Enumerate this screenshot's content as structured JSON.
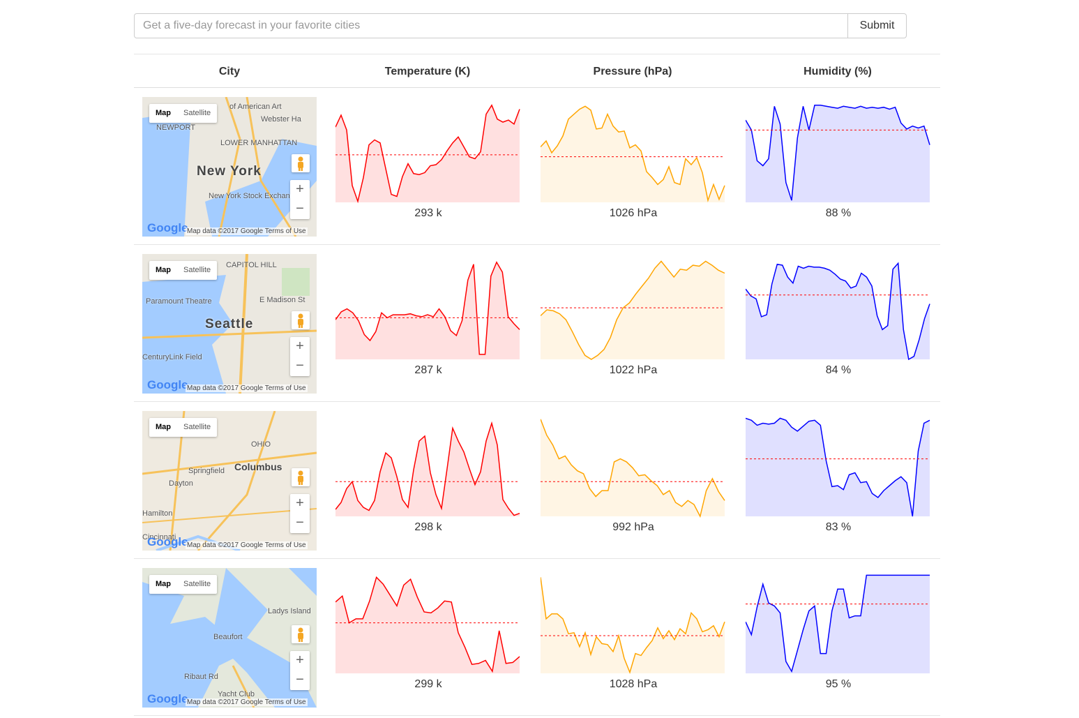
{
  "search": {
    "placeholder": "Get a five-day forecast in your favorite cities",
    "submit_label": "Submit"
  },
  "table": {
    "headers": [
      "City",
      "Temperature (K)",
      "Pressure (hPa)",
      "Humidity (%)"
    ]
  },
  "map_ui": {
    "map_label": "Map",
    "satellite_label": "Satellite",
    "zoom_in": "+",
    "zoom_out": "−",
    "google_logo": "Google",
    "attribution": "Map data ©2017 Google    Terms of Use"
  },
  "rows": [
    {
      "city": "New York",
      "map_labels": [
        "of American Art",
        "Webster Ha",
        "NEWPORT",
        "LOWER MANHATTAN",
        "New York Stock Exchange"
      ],
      "temperature": "293 k",
      "pressure": "1026 hPa",
      "humidity": "88 %",
      "series": {
        "temp": {
          "y": [
            0.76,
            0.88,
            0.73,
            0.17,
            0.01,
            0.25,
            0.58,
            0.63,
            0.6,
            0.34,
            0.08,
            0.06,
            0.26,
            0.39,
            0.29,
            0.28,
            0.3,
            0.37,
            0.38,
            0.43,
            0.52,
            0.6,
            0.66,
            0.56,
            0.46,
            0.44,
            0.51,
            0.89,
            0.98,
            0.84,
            0.81,
            0.83,
            0.79,
            0.94
          ],
          "mean": 0.48
        },
        "pres": {
          "y": [
            0.56,
            0.62,
            0.5,
            0.57,
            0.67,
            0.84,
            0.89,
            0.94,
            0.97,
            0.93,
            0.74,
            0.75,
            0.89,
            0.77,
            0.71,
            0.72,
            0.55,
            0.58,
            0.52,
            0.31,
            0.25,
            0.18,
            0.23,
            0.36,
            0.2,
            0.18,
            0.44,
            0.38,
            0.45,
            0.3,
            0.02,
            0.18,
            0.03,
            0.17
          ],
          "mean": 0.46
        },
        "hum": {
          "y": [
            0.83,
            0.73,
            0.42,
            0.37,
            0.44,
            0.97,
            0.79,
            0.2,
            0.02,
            0.65,
            0.97,
            0.73,
            0.98,
            0.98,
            0.97,
            0.96,
            0.95,
            0.97,
            0.96,
            0.95,
            0.97,
            0.95,
            0.96,
            0.95,
            0.96,
            0.94,
            0.96,
            0.8,
            0.74,
            0.77,
            0.75,
            0.77,
            0.58
          ],
          "mean": 0.73
        }
      }
    },
    {
      "city": "Seattle",
      "map_labels": [
        "CAPITOL HILL",
        "Paramount Theatre",
        "E Madison St",
        "CenturyLink Field"
      ],
      "temperature": "287 k",
      "pressure": "1022 hPa",
      "humidity": "84 %",
      "series": {
        "temp": {
          "y": [
            0.4,
            0.48,
            0.51,
            0.47,
            0.39,
            0.25,
            0.19,
            0.28,
            0.47,
            0.42,
            0.45,
            0.45,
            0.45,
            0.46,
            0.44,
            0.43,
            0.45,
            0.43,
            0.51,
            0.43,
            0.29,
            0.24,
            0.39,
            0.8,
            0.96,
            0.05,
            0.05,
            0.84,
            0.98,
            0.88,
            0.43,
            0.36,
            0.3
          ],
          "mean": 0.42
        },
        "pres": {
          "y": [
            0.44,
            0.5,
            0.49,
            0.46,
            0.4,
            0.28,
            0.15,
            0.04,
            0.0,
            0.04,
            0.1,
            0.22,
            0.4,
            0.52,
            0.57,
            0.66,
            0.74,
            0.82,
            0.92,
            0.99,
            0.91,
            0.83,
            0.91,
            0.9,
            0.95,
            0.94,
            0.99,
            0.95,
            0.9,
            0.87
          ],
          "mean": 0.52
        },
        "hum": {
          "y": [
            0.71,
            0.64,
            0.61,
            0.43,
            0.45,
            0.76,
            0.96,
            0.95,
            0.83,
            0.77,
            0.94,
            0.92,
            0.94,
            0.93,
            0.93,
            0.92,
            0.9,
            0.86,
            0.81,
            0.79,
            0.72,
            0.74,
            0.87,
            0.83,
            0.74,
            0.44,
            0.3,
            0.34,
            0.91,
            0.97,
            0.3,
            0.0,
            0.03,
            0.2,
            0.41,
            0.56
          ],
          "mean": 0.65
        }
      }
    },
    {
      "city": "Columbus",
      "map_labels": [
        "OHIO",
        "Springfield",
        "Dayton",
        "Hamilton",
        "Cincinnati"
      ],
      "temperature": "298 k",
      "pressure": "992 hPa",
      "humidity": "83 %",
      "series": {
        "temp": {
          "y": [
            0.07,
            0.14,
            0.28,
            0.35,
            0.16,
            0.09,
            0.06,
            0.16,
            0.45,
            0.64,
            0.59,
            0.4,
            0.17,
            0.09,
            0.47,
            0.76,
            0.81,
            0.44,
            0.22,
            0.08,
            0.48,
            0.89,
            0.76,
            0.65,
            0.48,
            0.32,
            0.45,
            0.76,
            0.94,
            0.72,
            0.17,
            0.08,
            0.01,
            0.03
          ],
          "mean": 0.35
        },
        "pres": {
          "y": [
            0.98,
            0.82,
            0.72,
            0.58,
            0.61,
            0.52,
            0.46,
            0.43,
            0.28,
            0.2,
            0.26,
            0.26,
            0.55,
            0.58,
            0.55,
            0.49,
            0.41,
            0.42,
            0.36,
            0.31,
            0.22,
            0.26,
            0.14,
            0.1,
            0.16,
            0.12,
            0.0,
            0.26,
            0.38,
            0.25,
            0.16
          ],
          "mean": 0.35
        },
        "hum": {
          "y": [
            0.99,
            0.97,
            0.92,
            0.94,
            0.93,
            0.94,
            0.99,
            0.97,
            0.9,
            0.86,
            0.91,
            0.96,
            0.97,
            0.92,
            0.56,
            0.3,
            0.31,
            0.27,
            0.42,
            0.44,
            0.34,
            0.35,
            0.23,
            0.19,
            0.26,
            0.31,
            0.36,
            0.4,
            0.34,
            0.0,
            0.66,
            0.94,
            0.97
          ],
          "mean": 0.58
        }
      }
    },
    {
      "city": "Beaufort",
      "map_labels": [
        "Ladys Island",
        "Beaufort",
        "Yacht Club",
        "Ribaut Rd"
      ],
      "temperature": "299 k",
      "pressure": "1028 hPa",
      "humidity": "95 %",
      "series": {
        "temp": {
          "y": [
            0.72,
            0.78,
            0.51,
            0.55,
            0.55,
            0.73,
            0.97,
            0.9,
            0.79,
            0.68,
            0.89,
            0.95,
            0.77,
            0.62,
            0.61,
            0.66,
            0.73,
            0.72,
            0.41,
            0.26,
            0.09,
            0.1,
            0.13,
            0.02,
            0.43,
            0.1,
            0.11,
            0.17
          ],
          "mean": 0.51
        },
        "pres": {
          "y": [
            0.97,
            0.55,
            0.6,
            0.6,
            0.55,
            0.4,
            0.41,
            0.27,
            0.41,
            0.19,
            0.37,
            0.3,
            0.29,
            0.22,
            0.38,
            0.15,
            0.01,
            0.2,
            0.18,
            0.26,
            0.33,
            0.46,
            0.35,
            0.43,
            0.34,
            0.45,
            0.4,
            0.61,
            0.55,
            0.42,
            0.44,
            0.48,
            0.37,
            0.52
          ],
          "mean": 0.38
        },
        "hum": {
          "y": [
            0.52,
            0.39,
            0.67,
            0.9,
            0.71,
            0.68,
            0.61,
            0.12,
            0.02,
            0.23,
            0.44,
            0.63,
            0.68,
            0.2,
            0.2,
            0.63,
            0.85,
            0.85,
            0.56,
            0.58,
            0.58,
            0.99,
            0.99,
            0.99,
            0.99,
            0.99,
            0.99,
            0.99,
            0.99,
            0.99,
            0.99,
            0.99,
            0.99
          ],
          "mean": 0.7
        }
      }
    }
  ],
  "colors": {
    "temp": "#ff0000",
    "temp_fill": "#ffe0e0",
    "pres": "#ffa500",
    "pres_fill": "#fff5e4",
    "hum": "#0000ff",
    "hum_fill": "#e0e0ff",
    "mean": "#ff0000"
  }
}
